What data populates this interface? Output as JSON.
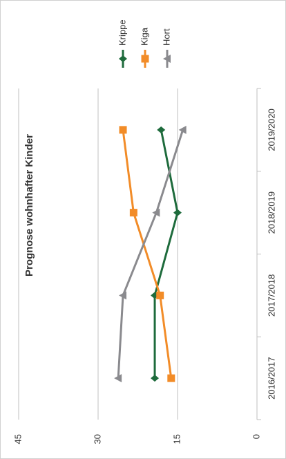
{
  "chart_data": {
    "type": "line",
    "title": "Prognose wohnhafter Kinder",
    "categories": [
      "2016/2017",
      "2017/2018",
      "2018/2019",
      "2019/2020"
    ],
    "series": [
      {
        "name": "Krippe",
        "color": "#1e6b3c",
        "values": [
          19.3,
          19.3,
          15,
          18.1
        ]
      },
      {
        "name": "Kiga",
        "color": "#f28c28",
        "values": [
          16.2,
          18.3,
          23.3,
          25.3
        ]
      },
      {
        "name": "Hort",
        "color": "#8a8a8e",
        "values": [
          26.2,
          25.3,
          19,
          14
        ]
      }
    ],
    "ylim": [
      0,
      45
    ],
    "yticks": [
      0,
      15,
      30,
      45
    ],
    "grid": true,
    "legend": "right"
  }
}
